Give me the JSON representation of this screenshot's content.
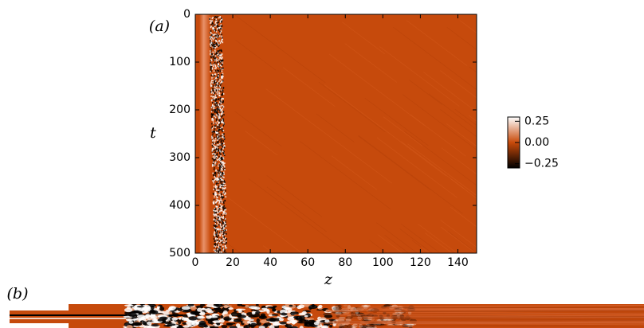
{
  "chart_data": [
    {
      "type": "heatmap",
      "title": "(a)",
      "xlabel": "z",
      "ylabel": "t",
      "xlim": [
        0,
        150
      ],
      "xticks": [
        0,
        20,
        40,
        60,
        80,
        100,
        120,
        140
      ],
      "ylim": [
        0,
        500
      ],
      "yticks": [
        0,
        100,
        200,
        300,
        400,
        500
      ],
      "invert_y": true,
      "colors": [
        "#000000",
        "#c84a0a",
        "#ffffff"
      ],
      "colorbar": {
        "lim": [
          -0.3,
          0.3
        ],
        "ticks": [
          0.25,
          {
            "value": 0,
            "label": "0.00"
          },
          {
            "value": -0.25,
            "label": "−0.25"
          }
        ]
      }
    },
    {
      "type": "heatmap",
      "title": "(b)"
    }
  ]
}
